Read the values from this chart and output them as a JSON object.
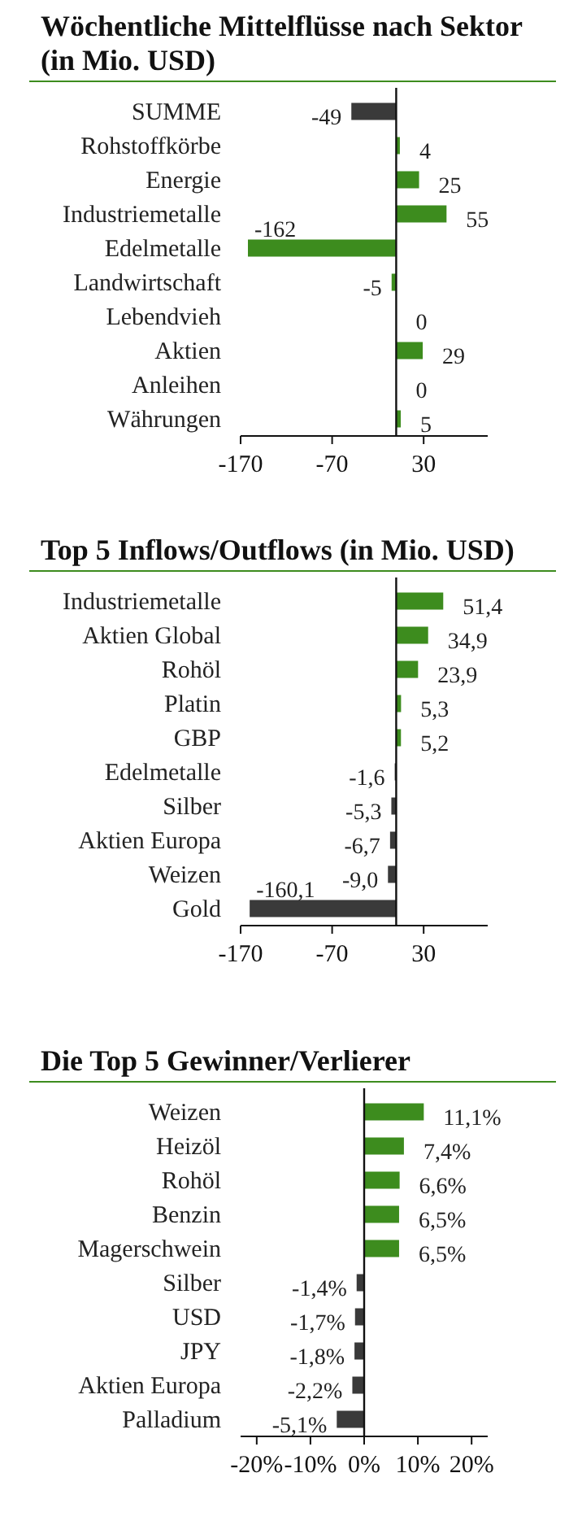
{
  "chart_data": [
    {
      "type": "bar",
      "orientation": "horizontal",
      "title": "Wöchentliche Mittelflüsse nach Sektor (in Mio. USD)",
      "categories": [
        "SUMME",
        "Rohstoffkörbe",
        "Energie",
        "Industriemetalle",
        "Edelmetalle",
        "Landwirtschaft",
        "Lebendvieh",
        "Aktien",
        "Anleihen",
        "Währungen"
      ],
      "values": [
        -49,
        4,
        25,
        55,
        -162,
        -5,
        0,
        29,
        0,
        5
      ],
      "colors": [
        "#3a3a3a",
        "#3d8c1e",
        "#3d8c1e",
        "#3d8c1e",
        "#3d8c1e",
        "#3d8c1e",
        "#3d8c1e",
        "#3d8c1e",
        "#3d8c1e",
        "#3d8c1e"
      ],
      "data_labels": true,
      "xlim": [
        -170,
        100
      ],
      "xticks": [
        -170,
        -70,
        30
      ]
    },
    {
      "type": "bar",
      "orientation": "horizontal",
      "title": "Top 5 Inflows/Outflows (in Mio. USD)",
      "categories": [
        "Industriemetalle",
        "Aktien Global",
        "Rohöl",
        "Platin",
        "GBP",
        "Edelmetalle",
        "Silber",
        "Aktien Europa",
        "Weizen",
        "Gold"
      ],
      "values": [
        51.4,
        34.9,
        23.9,
        5.3,
        5.2,
        -1.6,
        -5.3,
        -6.7,
        -9.0,
        -160.1
      ],
      "value_labels": [
        "51,4",
        "34,9",
        "23,9",
        "5,3",
        "5,2",
        "-1,6",
        "-5,3",
        "-6,7",
        "-9,0",
        "-160,1"
      ],
      "colors": [
        "#3d8c1e",
        "#3d8c1e",
        "#3d8c1e",
        "#3d8c1e",
        "#3d8c1e",
        "#3a3a3a",
        "#3a3a3a",
        "#3a3a3a",
        "#3a3a3a",
        "#3a3a3a"
      ],
      "xlim": [
        -170,
        100
      ],
      "xticks": [
        -170,
        -70,
        30
      ]
    },
    {
      "type": "bar",
      "orientation": "horizontal",
      "title": "Die Top 5 Gewinner/Verlierer",
      "categories": [
        "Weizen",
        "Heizöl",
        "Rohöl",
        "Benzin",
        "Magerschwein",
        "Silber",
        "USD",
        "JPY",
        "Aktien Europa",
        "Palladium"
      ],
      "values": [
        11.1,
        7.4,
        6.6,
        6.5,
        6.5,
        -1.4,
        -1.7,
        -1.8,
        -2.2,
        -5.1
      ],
      "value_labels": [
        "11,1%",
        "7,4%",
        "6,6%",
        "6,5%",
        "6,5%",
        "-1,4%",
        "-1,7%",
        "-1,8%",
        "-2,2%",
        "-5,1%"
      ],
      "colors": [
        "#3d8c1e",
        "#3d8c1e",
        "#3d8c1e",
        "#3d8c1e",
        "#3d8c1e",
        "#3a3a3a",
        "#3a3a3a",
        "#3a3a3a",
        "#3a3a3a",
        "#3a3a3a"
      ],
      "xlim": [
        -23,
        23
      ],
      "xticks": [
        {
          "value": -20,
          "label": "-20%"
        },
        {
          "value": -10,
          "label": "-10%"
        },
        {
          "value": 0,
          "label": "0%"
        },
        {
          "value": 10,
          "label": "10%"
        },
        {
          "value": 20,
          "label": "20%"
        }
      ]
    }
  ]
}
